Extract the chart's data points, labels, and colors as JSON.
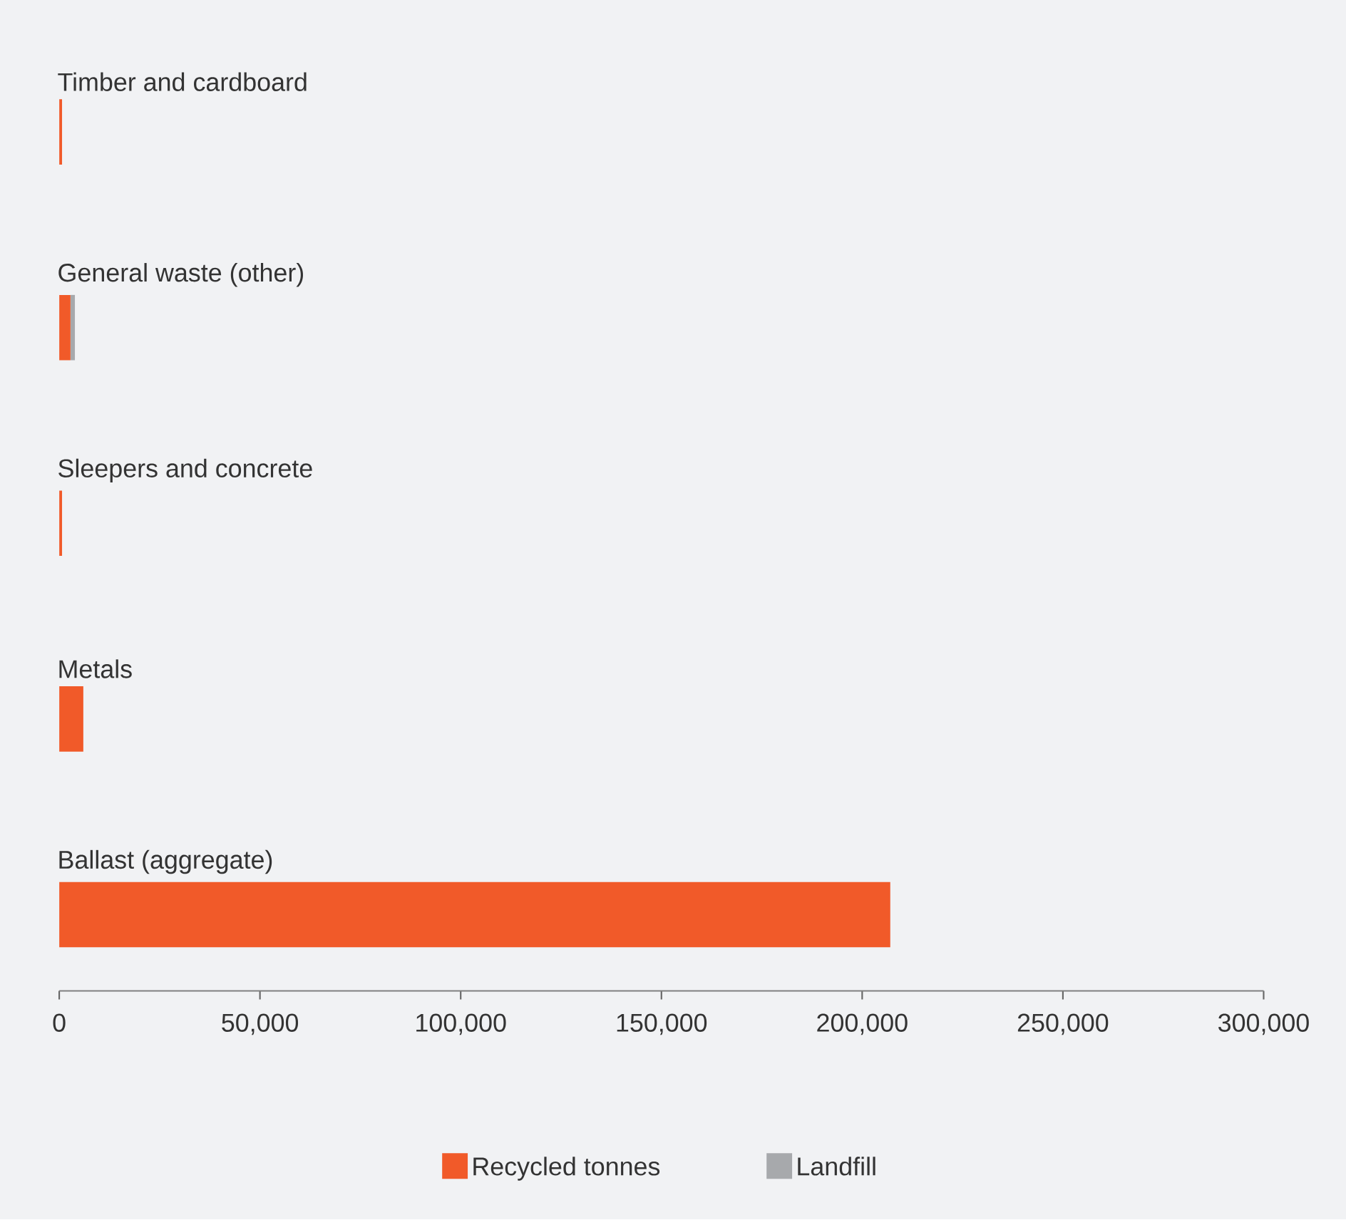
{
  "chart_data": {
    "type": "bar",
    "orientation": "horizontal",
    "stacked": true,
    "categories": [
      "Timber and cardboard",
      "General waste (other)",
      "Sleepers and concrete",
      "Metals",
      "Ballast (aggregate)"
    ],
    "series": [
      {
        "name": "Recycled tonnes",
        "color": "#f15a29",
        "values": [
          700,
          2800,
          700,
          6000,
          207000
        ]
      },
      {
        "name": "Landfill",
        "color": "#a7a9ac",
        "values": [
          0,
          1100,
          0,
          0,
          0
        ]
      }
    ],
    "xlim": [
      0,
      300000
    ],
    "xticks": [
      0,
      {
        "value": 50000,
        "label": "50,000"
      },
      {
        "value": 100000,
        "label": "100,000"
      },
      {
        "value": 150000,
        "label": "150,000"
      },
      {
        "value": 200000,
        "label": "200,000"
      },
      {
        "value": 250000,
        "label": "250,000"
      },
      {
        "value": 300000,
        "label": "300,000"
      }
    ],
    "legend": "bottom"
  }
}
